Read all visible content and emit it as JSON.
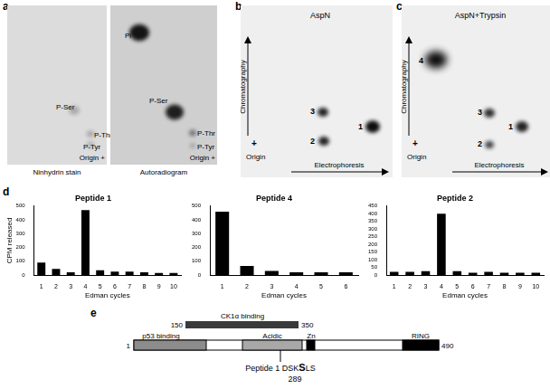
{
  "panel_a": {
    "label": "a",
    "images": [
      {
        "caption": "Ninhydrin stain",
        "spots": [
          "P-Ser",
          "P-Thr",
          "P-Tyr"
        ],
        "origin": "Origin +"
      },
      {
        "caption": "Autoradiogram",
        "spots": [
          "Pi",
          "P-Ser",
          "P-Thr",
          "P-Tyr"
        ],
        "origin": "Origin +"
      }
    ]
  },
  "panel_b": {
    "label": "b",
    "title": "AspN",
    "spots": [
      "1",
      "2",
      "3"
    ],
    "y_axis": "Chromatography",
    "x_axis": "Electrophoresis",
    "origin": "Origin",
    "origin_mark": "+"
  },
  "panel_c": {
    "label": "c",
    "title": "AspN+Trypsin",
    "spots": [
      "4",
      "3",
      "2",
      "1"
    ],
    "y_axis": "Chromatography",
    "x_axis": "Electrophoresis",
    "origin": "Origin",
    "origin_mark": "+"
  },
  "panel_d": {
    "label": "d"
  },
  "chart_data": [
    {
      "type": "bar",
      "title": "Peptide 1",
      "categories": [
        1,
        2,
        3,
        4,
        5,
        6,
        7,
        8,
        9,
        10
      ],
      "values": [
        90,
        45,
        20,
        470,
        35,
        25,
        25,
        20,
        15,
        15
      ],
      "color": "#000000",
      "ylim": [
        0,
        500
      ],
      "yticks": [
        0,
        100,
        200,
        300,
        400,
        500
      ],
      "x_label": "Edman cycles",
      "y_label": "CPM released",
      "grid": false
    },
    {
      "type": "bar",
      "title": "Peptide 4",
      "categories": [
        1,
        2,
        3,
        4,
        5,
        6
      ],
      "values": [
        460,
        65,
        30,
        20,
        20,
        20
      ],
      "color": "#000000",
      "ylim": [
        0,
        500
      ],
      "yticks": [
        0,
        100,
        200,
        300,
        400,
        500
      ],
      "x_label": "Edman cycles",
      "grid": false
    },
    {
      "type": "bar",
      "title": "Peptide 2",
      "categories": [
        1,
        2,
        3,
        4,
        5,
        6,
        7,
        8,
        9,
        10
      ],
      "values": [
        20,
        20,
        25,
        400,
        25,
        15,
        20,
        15,
        15,
        15
      ],
      "color": "#000000",
      "ylim": [
        0,
        450
      ],
      "yticks": [
        0,
        50,
        100,
        150,
        200,
        250,
        300,
        350,
        400,
        450
      ],
      "x_label": "Edman cycles",
      "grid": false
    }
  ],
  "panel_e": {
    "label": "e",
    "binding": {
      "label": "CK1α binding",
      "start": 150,
      "end": 350
    },
    "start": 1,
    "end": 490,
    "domains": [
      "p53 binding",
      "Acidic",
      "Zn",
      "RING"
    ],
    "peptide": {
      "name": "Peptide 1",
      "before": "DSK",
      "site": "S",
      "after": "LS",
      "position": 289
    }
  }
}
